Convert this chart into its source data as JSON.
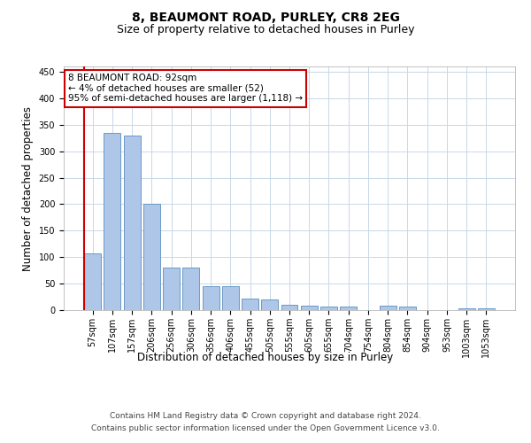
{
  "title": "8, BEAUMONT ROAD, PURLEY, CR8 2EG",
  "subtitle": "Size of property relative to detached houses in Purley",
  "xlabel": "Distribution of detached houses by size in Purley",
  "ylabel": "Number of detached properties",
  "footer_line1": "Contains HM Land Registry data © Crown copyright and database right 2024.",
  "footer_line2": "Contains public sector information licensed under the Open Government Licence v3.0.",
  "annotation_line1": "8 BEAUMONT ROAD: 92sqm",
  "annotation_line2": "← 4% of detached houses are smaller (52)",
  "annotation_line3": "95% of semi-detached houses are larger (1,118) →",
  "bar_labels": [
    "57sqm",
    "107sqm",
    "157sqm",
    "206sqm",
    "256sqm",
    "306sqm",
    "356sqm",
    "406sqm",
    "455sqm",
    "505sqm",
    "555sqm",
    "605sqm",
    "655sqm",
    "704sqm",
    "754sqm",
    "804sqm",
    "854sqm",
    "904sqm",
    "953sqm",
    "1003sqm",
    "1053sqm"
  ],
  "bar_values": [
    107,
    335,
    330,
    200,
    80,
    80,
    46,
    46,
    22,
    20,
    10,
    8,
    7,
    6,
    0,
    8,
    7,
    0,
    0,
    4,
    3
  ],
  "bar_color": "#aec6e8",
  "bar_edge_color": "#5a8fc0",
  "vline_color": "#cc0000",
  "annotation_box_edge_color": "#cc0000",
  "ylim": [
    0,
    460
  ],
  "yticks": [
    0,
    50,
    100,
    150,
    200,
    250,
    300,
    350,
    400,
    450
  ],
  "background_color": "#ffffff",
  "grid_color": "#c8d8e8",
  "title_fontsize": 10,
  "subtitle_fontsize": 9,
  "axis_label_fontsize": 8.5,
  "tick_fontsize": 7,
  "footer_fontsize": 6.5,
  "annotation_fontsize": 7.5
}
